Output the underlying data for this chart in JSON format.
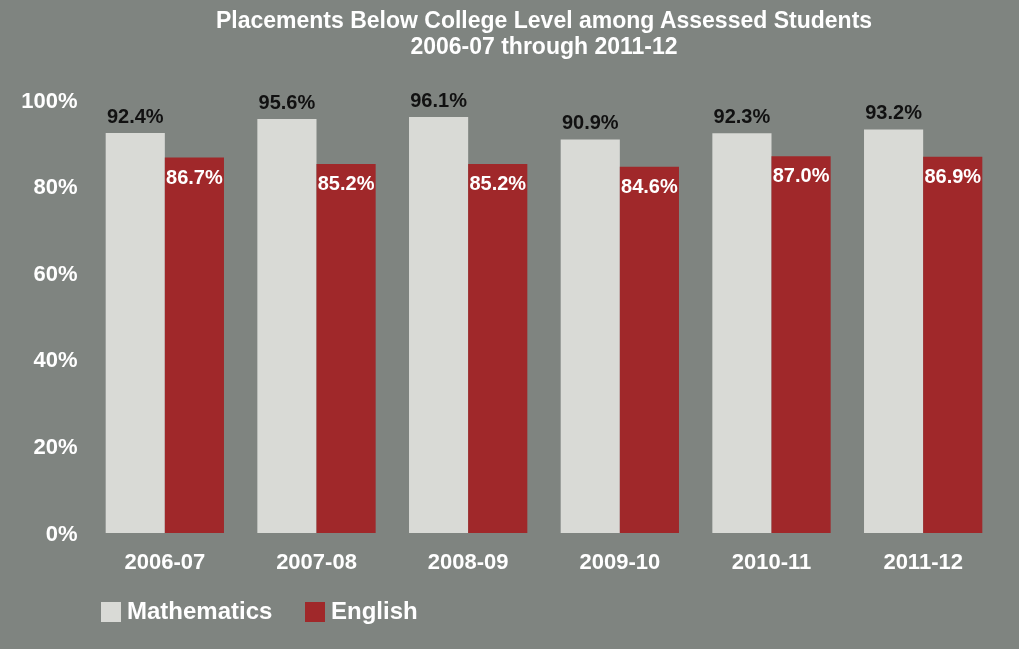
{
  "chart_data": {
    "type": "bar",
    "title": "Placements Below College Level among Assessed Students",
    "subtitle": "2006-07 through 2011-12",
    "categories": [
      "2006-07",
      "2007-08",
      "2008-09",
      "2009-10",
      "2010-11",
      "2011-12"
    ],
    "series": [
      {
        "name": "Mathematics",
        "color": "#d9dad6",
        "values": [
          92.4,
          95.6,
          96.1,
          90.9,
          92.3,
          93.2
        ],
        "value_labels": [
          "92.4%",
          "95.6%",
          "96.1%",
          "90.9%",
          "92.3%",
          "93.2%"
        ]
      },
      {
        "name": "English",
        "color": "#a0282a",
        "values": [
          86.7,
          85.2,
          85.2,
          84.6,
          87.0,
          86.9
        ],
        "value_labels": [
          "86.7%",
          "85.2%",
          "85.2%",
          "84.6%",
          "87.0%",
          "86.9%"
        ]
      }
    ],
    "ylim": [
      0,
      100
    ],
    "yticks": [
      {
        "value": 0,
        "label": "0%"
      },
      {
        "value": 20,
        "label": "20%"
      },
      {
        "value": 40,
        "label": "40%"
      },
      {
        "value": 60,
        "label": "60%"
      },
      {
        "value": 80,
        "label": "80%"
      },
      {
        "value": 100,
        "label": "100%"
      }
    ],
    "grid": false,
    "legend": "bottom"
  }
}
